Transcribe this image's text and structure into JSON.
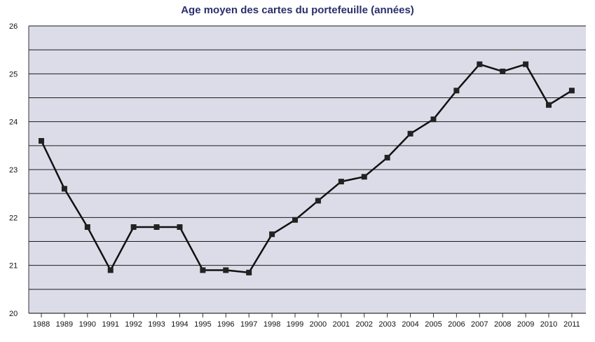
{
  "chart_data": {
    "type": "line",
    "title": "Age moyen des cartes du portefeuille (années)",
    "xlabel": "",
    "ylabel": "",
    "categories": [
      "1988",
      "1989",
      "1990",
      "1991",
      "1992",
      "1993",
      "1994",
      "1995",
      "1996",
      "1997",
      "1998",
      "1999",
      "2000",
      "2001",
      "2002",
      "2003",
      "2004",
      "2005",
      "2006",
      "2007",
      "2008",
      "2009",
      "2010",
      "2011"
    ],
    "series": [
      {
        "values": [
          23.6,
          22.6,
          21.8,
          20.9,
          21.8,
          21.8,
          21.8,
          20.9,
          20.9,
          20.85,
          21.65,
          21.95,
          22.35,
          22.75,
          22.85,
          23.25,
          23.75,
          24.05,
          24.65,
          25.2,
          25.05,
          25.2,
          24.35,
          24.65
        ]
      }
    ],
    "ylim": [
      20,
      26
    ],
    "yticks": [
      "20",
      "21",
      "22",
      "23",
      "24",
      "25",
      "26"
    ],
    "grid": true,
    "legend": "none",
    "colors": {
      "plot_background": "#dcdce9",
      "line": "#111111",
      "marker": "#222222",
      "title": "#2a2f6b"
    }
  }
}
